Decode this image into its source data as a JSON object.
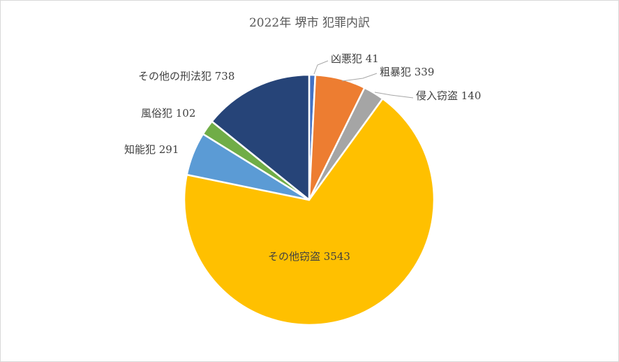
{
  "chart_data": {
    "type": "pie",
    "title": "2022年 堺市 犯罪内訳",
    "slices": [
      {
        "category": "凶悪犯",
        "value": 41,
        "label": "凶悪犯 41",
        "color": "#4472C4"
      },
      {
        "category": "粗暴犯",
        "value": 339,
        "label": "粗暴犯 339",
        "color": "#ED7D31"
      },
      {
        "category": "侵入窃盗",
        "value": 140,
        "label": "侵入窃盗 140",
        "color": "#A5A5A5"
      },
      {
        "category": "その他窃盗",
        "value": 3543,
        "label": "その他窃盗 3543",
        "color": "#FFC000"
      },
      {
        "category": "知能犯",
        "value": 291,
        "label": "知能犯 291",
        "color": "#5B9BD5"
      },
      {
        "category": "風俗犯",
        "value": 102,
        "label": "風俗犯 102",
        "color": "#70AD47"
      },
      {
        "category": "その他の刑法犯",
        "value": 738,
        "label": "その他の刑法犯 738",
        "color": "#264478"
      }
    ],
    "start_angle_deg": 0,
    "direction": "clockwise",
    "legend": "none",
    "data_labels": "outside with leader lines (callouts)"
  }
}
